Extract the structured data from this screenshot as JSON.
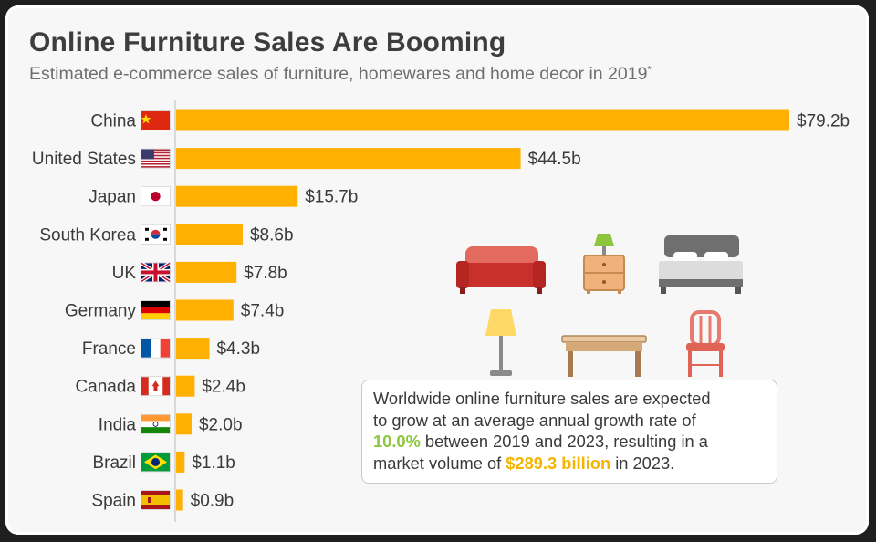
{
  "header": {
    "title": "Online Furniture Sales Are Booming",
    "subtitle": "Estimated e-commerce sales of furniture, homewares and home decor in 2019",
    "subtitle_mark": "*"
  },
  "callout": {
    "line1": "Worldwide online furniture sales are expected",
    "line2": "to grow at an average annual growth rate of",
    "growth": "10.0%",
    "line3": " between 2019 and 2023, resulting in a",
    "line4a": "market volume of ",
    "volume": "$289.3 billion",
    "line4b": " in 2023."
  },
  "colors": {
    "bar": "#FFB000",
    "axis": "#cfcfcf",
    "growth_highlight": "#8cc63f",
    "volume_highlight": "#f5b400"
  },
  "illustrations": [
    "sofa-icon",
    "nightstand-lamp-icon",
    "bed-icon",
    "floor-lamp-icon",
    "table-icon",
    "chair-icon"
  ],
  "chart_data": {
    "type": "bar",
    "orientation": "horizontal",
    "categories": [
      "China",
      "United States",
      "Japan",
      "South Korea",
      "UK",
      "Germany",
      "France",
      "Canada",
      "India",
      "Brazil",
      "Spain"
    ],
    "values": [
      79.2,
      44.5,
      15.7,
      8.6,
      7.8,
      7.4,
      4.3,
      2.4,
      2.0,
      1.1,
      0.9
    ],
    "value_labels": [
      "$79.2b",
      "$44.5b",
      "$15.7b",
      "$8.6b",
      "$7.8b",
      "$7.4b",
      "$4.3b",
      "$2.4b",
      "$2.0b",
      "$1.1b",
      "$0.9b"
    ],
    "flags": [
      "flag-china-icon",
      "flag-usa-icon",
      "flag-japan-icon",
      "flag-south-korea-icon",
      "flag-uk-icon",
      "flag-germany-icon",
      "flag-france-icon",
      "flag-canada-icon",
      "flag-india-icon",
      "flag-brazil-icon",
      "flag-spain-icon"
    ],
    "unit": "billion USD",
    "xlim": [
      0,
      79.2
    ],
    "grid": false,
    "legend": "none"
  }
}
